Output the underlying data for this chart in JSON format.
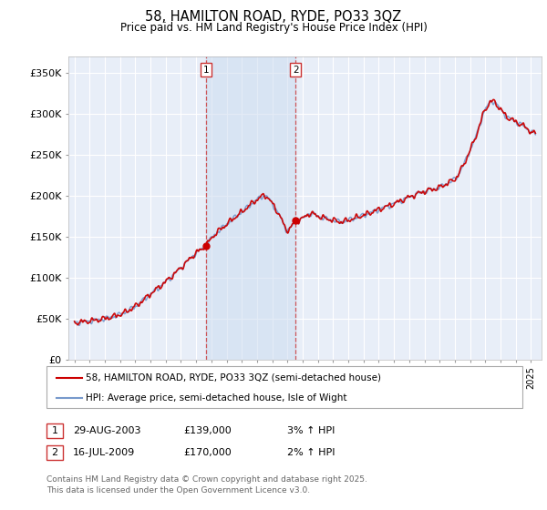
{
  "title": "58, HAMILTON ROAD, RYDE, PO33 3QZ",
  "subtitle": "Price paid vs. HM Land Registry's House Price Index (HPI)",
  "ylabel_ticks": [
    "£0",
    "£50K",
    "£100K",
    "£150K",
    "£200K",
    "£250K",
    "£300K",
    "£350K"
  ],
  "ytick_vals": [
    0,
    50000,
    100000,
    150000,
    200000,
    250000,
    300000,
    350000
  ],
  "ylim": [
    0,
    370000
  ],
  "xlim_start": 1994.6,
  "xlim_end": 2025.7,
  "background_color": "#ffffff",
  "plot_bg_color": "#e8eef8",
  "grid_color": "#ffffff",
  "line_color_property": "#cc0000",
  "line_color_hpi": "#7799cc",
  "shade_color": "#ccdcef",
  "marker1_x": 2003.66,
  "marker1_y": 139000,
  "marker2_x": 2009.54,
  "marker2_y": 170000,
  "marker1_date": "29-AUG-2003",
  "marker1_price": "£139,000",
  "marker1_hpi": "3% ↑ HPI",
  "marker2_date": "16-JUL-2009",
  "marker2_price": "£170,000",
  "marker2_hpi": "2% ↑ HPI",
  "legend_line1": "58, HAMILTON ROAD, RYDE, PO33 3QZ (semi-detached house)",
  "legend_line2": "HPI: Average price, semi-detached house, Isle of Wight",
  "footer": "Contains HM Land Registry data © Crown copyright and database right 2025.\nThis data is licensed under the Open Government Licence v3.0."
}
